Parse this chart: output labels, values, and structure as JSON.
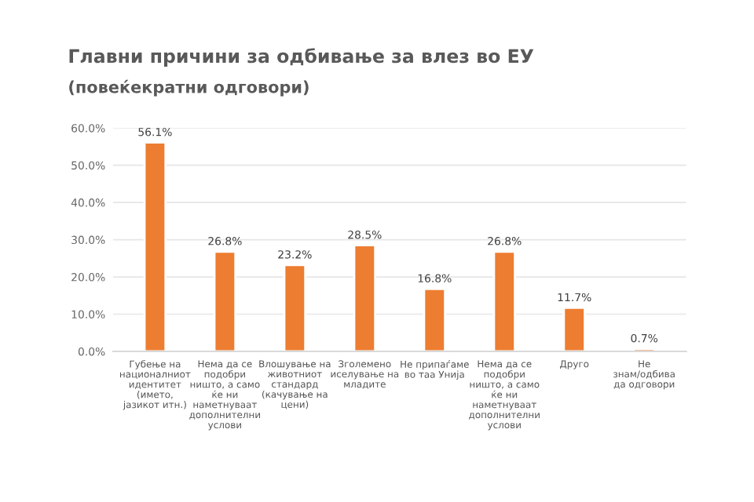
{
  "chart_data": {
    "type": "bar",
    "title": "Главни причини за одбивање за влез во ЕУ",
    "subtitle": "(повеќекратни одговори)",
    "categories": [
      "Губење на\nнационалниот\nидентитет\n(името,\nјазикот итн.)",
      "Нема да се\nподобри\nништо, а само\nќе ни\nнаметнуваат\nдополнителни\nуслови",
      "Влошување на\nживотниот\nстандард\n(качување на\nцени)",
      "Зголемено\nиселување на\nмладите",
      "Не припаѓаме\nво таа Унија",
      "Нема да се\nподобри\nништо, а само\nќе ни\nнаметнуваат\nдополнителни\nуслови",
      "Друго",
      "Не\nзнам/одбива\nда одговори"
    ],
    "values": [
      56.1,
      26.8,
      23.2,
      28.5,
      16.8,
      26.8,
      11.7,
      0.7
    ],
    "value_labels": [
      "56.1%",
      "26.8%",
      "23.2%",
      "28.5%",
      "16.8%",
      "26.8%",
      "11.7%",
      "0.7%"
    ],
    "color": "#ed7d31",
    "ylim": [
      0,
      60
    ],
    "yticks": [
      {
        "value": 0,
        "label": "0.0%"
      },
      {
        "value": 10,
        "label": "10.0%"
      },
      {
        "value": 20,
        "label": "20.0%"
      },
      {
        "value": 30,
        "label": "30.0%"
      },
      {
        "value": 40,
        "label": "40.0%"
      },
      {
        "value": 50,
        "label": "50.0%"
      },
      {
        "value": 60,
        "label": "60.0%"
      }
    ],
    "grid": "y"
  }
}
